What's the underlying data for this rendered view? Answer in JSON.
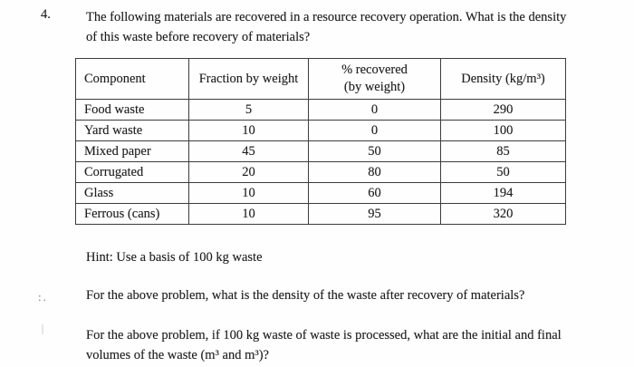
{
  "page": {
    "problem_number": "4.",
    "question1": {
      "lines": [
        "The following materials are recovered in a resource recovery operation. What is the density",
        "of this waste before recovery of materials?"
      ]
    },
    "hint": "Hint: Use a basis of 100 kg waste",
    "question2": "For the above problem, what is the density of the waste after recovery of materials?",
    "question3": {
      "lines": [
        "For the above problem, if 100 kg waste of waste is processed, what are the initial and final",
        "volumes of the waste (m³ and m³)?"
      ]
    }
  },
  "table": {
    "headers": {
      "component": "Component",
      "fraction": "Fraction by weight",
      "recovered_line1": "% recovered",
      "recovered_line2": "(by weight)",
      "density": "Density (kg/m³)"
    },
    "rows": [
      {
        "component": "Food waste",
        "fraction": "5",
        "recovered": "0",
        "density": "290"
      },
      {
        "component": "Yard waste",
        "fraction": "10",
        "recovered": "0",
        "density": "100"
      },
      {
        "component": "Mixed paper",
        "fraction": "45",
        "recovered": "50",
        "density": "85"
      },
      {
        "component": "Corrugated",
        "fraction": "20",
        "recovered": "80",
        "density": "50"
      },
      {
        "component": "Glass",
        "fraction": "10",
        "recovered": "60",
        "density": "194"
      },
      {
        "component": "Ferrous (cans)",
        "fraction": "10",
        "recovered": "95",
        "density": "320"
      }
    ]
  },
  "colors": {
    "text": "#1e1e1e",
    "table_border": "#3c3c3c",
    "background": "#fefefe"
  }
}
